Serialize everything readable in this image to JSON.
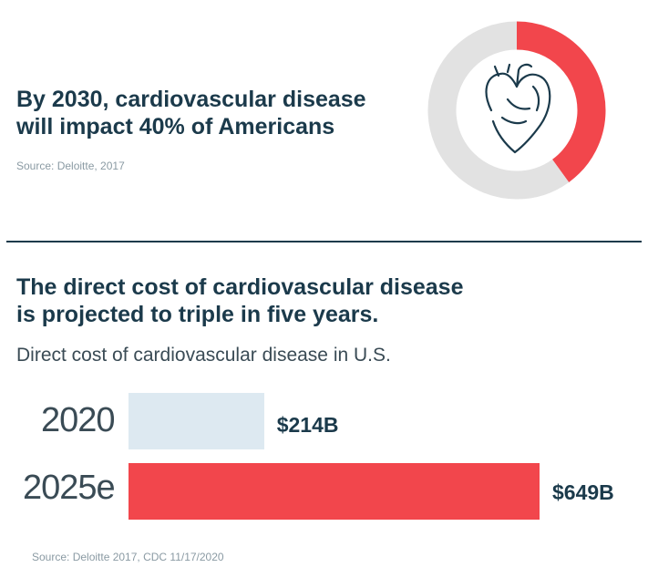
{
  "top": {
    "headline": [
      "By 2030, cardiovascular disease",
      "will impact 40% of Americans"
    ],
    "source": "Source: Deloitte, 2017",
    "icon": "heart-icon"
  },
  "bottom": {
    "headline": [
      "The direct cost of cardiovascular disease",
      "is projected to triple in five years."
    ],
    "subtitle": "Direct cost of cardiovascular disease in U.S.",
    "source": "Source: Deloitte 2017, CDC 11/17/2020"
  },
  "colors": {
    "accent": "#f2464c",
    "light": "#dde9f1",
    "track": "#e2e2e2",
    "navy": "#1b3a4b"
  },
  "chart_data": [
    {
      "type": "pie",
      "title": "",
      "values": [
        40,
        60
      ],
      "units": "percent",
      "colors": [
        "#f2464c",
        "#e2e2e2"
      ]
    },
    {
      "type": "bar",
      "orientation": "horizontal",
      "title": "Direct cost of cardiovascular disease in U.S.",
      "categories": [
        "2020",
        "2025e"
      ],
      "values": [
        214,
        649
      ],
      "value_labels": [
        "$214B",
        "$649B"
      ],
      "xlim": [
        0,
        649
      ],
      "grid": false,
      "colors": [
        "#dde9f1",
        "#f2464c"
      ]
    }
  ]
}
